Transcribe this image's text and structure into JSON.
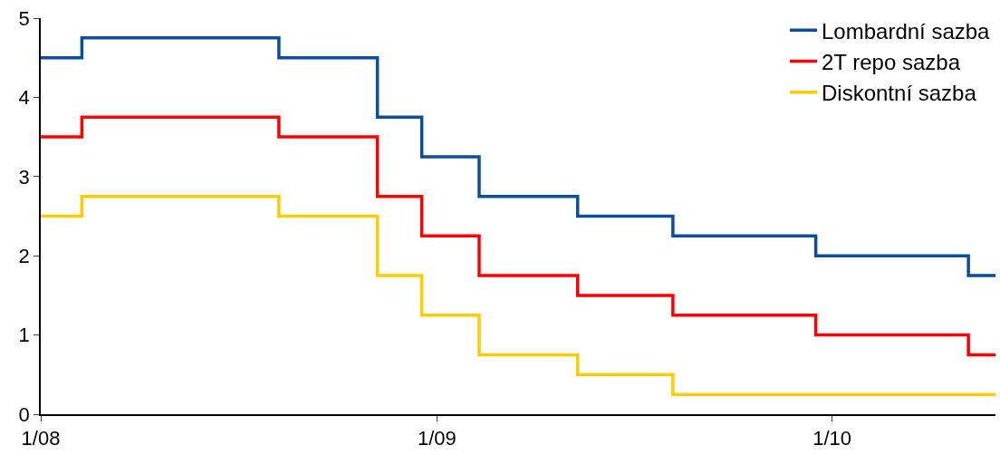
{
  "chart_data": {
    "type": "step",
    "x": [
      "2008-01-01",
      "2008-02-08",
      "2008-08-08",
      "2008-11-07",
      "2008-12-18",
      "2009-02-09",
      "2009-05-11",
      "2009-08-07",
      "2009-12-17",
      "2010-05-07",
      "2010-06-01"
    ],
    "series": [
      {
        "name": "Lombardní sazba",
        "color": "#0b4f9c",
        "values": [
          4.5,
          4.75,
          4.5,
          3.75,
          3.25,
          2.75,
          2.5,
          2.25,
          2.0,
          1.75,
          1.75
        ]
      },
      {
        "name": "2T repo sazba",
        "color": "#ff0000",
        "values": [
          3.5,
          3.75,
          3.5,
          2.75,
          2.25,
          1.75,
          1.5,
          1.25,
          1.0,
          0.75,
          0.75
        ]
      },
      {
        "name": "Diskontní sazba",
        "color": "#ffcc00",
        "values": [
          2.5,
          2.75,
          2.5,
          1.75,
          1.25,
          0.75,
          0.5,
          0.25,
          0.25,
          0.25,
          0.25
        ]
      }
    ],
    "xlim": [
      "2008-01-01",
      "2010-06-01"
    ],
    "xticks": [
      {
        "value": "2008-01-01",
        "label": "1/08"
      },
      {
        "value": "2009-01-01",
        "label": "1/09"
      },
      {
        "value": "2010-01-01",
        "label": "1/10"
      }
    ],
    "ylim": [
      0,
      5
    ],
    "yticks": [
      0,
      1,
      2,
      3,
      4,
      5
    ],
    "legend": "top right",
    "marker": "none",
    "line_style": "solid"
  }
}
